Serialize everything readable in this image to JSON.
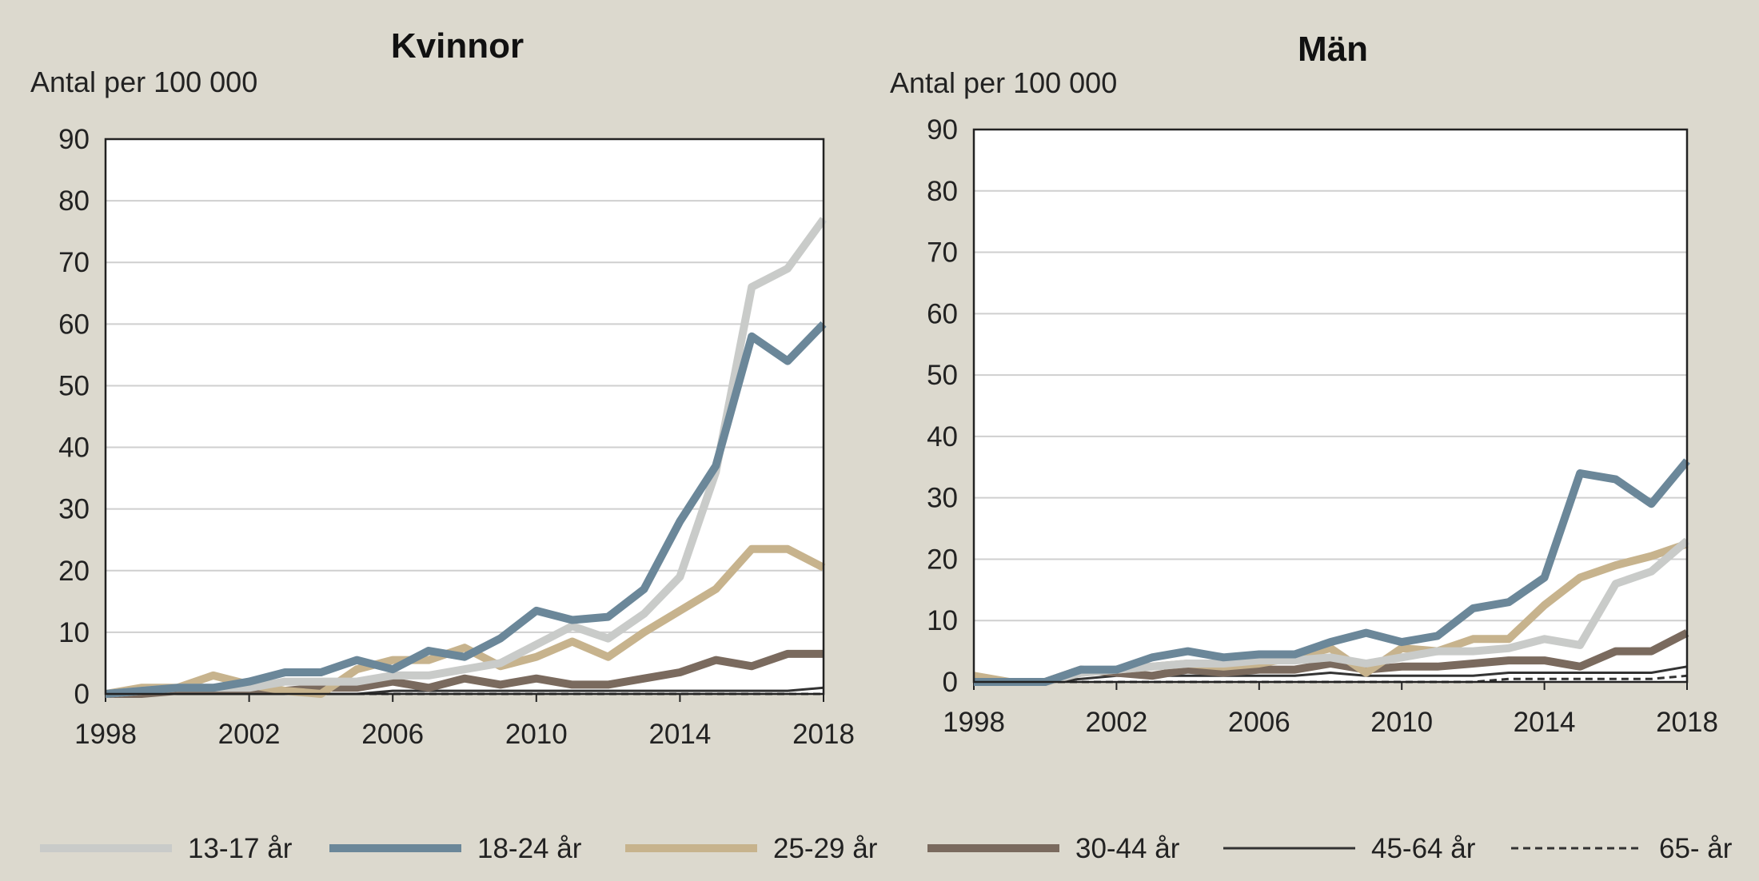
{
  "colors": {
    "background": "#dcd9ce",
    "plot_background": "#ffffff",
    "grid": "#cfcfcf",
    "axis": "#222222"
  },
  "legend": {
    "placement": "bottom",
    "items": [
      {
        "label": "13-17 år",
        "color": "#c9cbc9",
        "style": "thick"
      },
      {
        "label": "18-24 år",
        "color": "#6b8799",
        "style": "thick"
      },
      {
        "label": "25-29 år",
        "color": "#c7b38d",
        "style": "thick"
      },
      {
        "label": "30-44 år",
        "color": "#7a6a5e",
        "style": "thick"
      },
      {
        "label": "45-64 år",
        "color": "#333333",
        "style": "thin"
      },
      {
        "label": "65- år",
        "color": "#333333",
        "style": "dashed"
      }
    ]
  },
  "chart_data": [
    {
      "type": "line",
      "title": "Kvinnor",
      "ylabel": "Antal per 100 000",
      "xlabel": "",
      "ylim": [
        0,
        90
      ],
      "yticks": [
        0,
        10,
        20,
        30,
        40,
        50,
        60,
        70,
        80,
        90
      ],
      "xlim": [
        1998,
        2018
      ],
      "xticks": [
        1998,
        2002,
        2006,
        2010,
        2014,
        2018
      ],
      "grid": true,
      "x": [
        1998,
        1999,
        2000,
        2001,
        2002,
        2003,
        2004,
        2005,
        2006,
        2007,
        2008,
        2009,
        2010,
        2011,
        2012,
        2013,
        2014,
        2015,
        2016,
        2017,
        2018
      ],
      "series": [
        {
          "name": "13-17 år",
          "values": [
            0,
            0.5,
            1,
            1,
            1,
            2,
            2,
            2,
            3,
            3,
            4,
            5,
            8,
            11,
            9,
            13,
            19,
            36,
            66,
            69,
            77
          ]
        },
        {
          "name": "18-24 år",
          "values": [
            0,
            0.5,
            1,
            1,
            2,
            3.5,
            3.5,
            5.5,
            4,
            7,
            6,
            9,
            13.5,
            12,
            12.5,
            17,
            28,
            37,
            58,
            54,
            60
          ]
        },
        {
          "name": "25-29 år",
          "values": [
            0,
            1,
            1,
            3,
            1.5,
            0.5,
            0,
            4,
            5.5,
            5.5,
            7.5,
            4.5,
            6,
            8.5,
            6,
            10,
            13.5,
            17,
            23.5,
            23.5,
            20.5
          ]
        },
        {
          "name": "30-44 år",
          "values": [
            0,
            0,
            0.5,
            0.5,
            0.5,
            0.5,
            1,
            1,
            2,
            1,
            2.5,
            1.5,
            2.5,
            1.5,
            1.5,
            2.5,
            3.5,
            5.5,
            4.5,
            6.5,
            6.5
          ]
        },
        {
          "name": "45-64 år",
          "values": [
            0,
            0,
            0,
            0,
            0,
            0,
            0,
            0,
            0.5,
            0.5,
            0.5,
            0.5,
            0.5,
            0.5,
            0.5,
            0.5,
            0.5,
            0.5,
            0.5,
            0.5,
            1
          ]
        },
        {
          "name": "65- år",
          "values": [
            0,
            0,
            0,
            0,
            0,
            0,
            0,
            0,
            0,
            0,
            0,
            0,
            0,
            0,
            0,
            0,
            0,
            0,
            0,
            0,
            0
          ]
        }
      ]
    },
    {
      "type": "line",
      "title": "Män",
      "ylabel": "Antal per 100 000",
      "xlabel": "",
      "ylim": [
        0,
        90
      ],
      "yticks": [
        0,
        10,
        20,
        30,
        40,
        50,
        60,
        70,
        80,
        90
      ],
      "xlim": [
        1998,
        2018
      ],
      "xticks": [
        1998,
        2002,
        2006,
        2010,
        2014,
        2018
      ],
      "grid": true,
      "x": [
        1998,
        1999,
        2000,
        2001,
        2002,
        2003,
        2004,
        2005,
        2006,
        2007,
        2008,
        2009,
        2010,
        2011,
        2012,
        2013,
        2014,
        2015,
        2016,
        2017,
        2018
      ],
      "series": [
        {
          "name": "13-17 år",
          "values": [
            0,
            0,
            0,
            1.5,
            2,
            2.5,
            3,
            3,
            3.5,
            3.5,
            4,
            3,
            4,
            5,
            5,
            5.5,
            7,
            6,
            16,
            18,
            23
          ]
        },
        {
          "name": "18-24 år",
          "values": [
            0,
            0,
            0,
            2,
            2,
            4,
            5,
            4,
            4.5,
            4.5,
            6.5,
            8,
            6.5,
            7.5,
            12,
            13,
            17,
            34,
            33,
            29,
            36
          ]
        },
        {
          "name": "25-29 år",
          "values": [
            1,
            0,
            0,
            1.5,
            2,
            2.5,
            3,
            2.5,
            3,
            4,
            5.5,
            1.5,
            5.5,
            5,
            7,
            7,
            12.5,
            17,
            19,
            20.5,
            22.5
          ]
        },
        {
          "name": "30-44 år",
          "values": [
            0,
            0,
            0,
            2,
            1.5,
            1,
            2,
            1.5,
            2,
            2,
            3,
            2,
            2.5,
            2.5,
            3,
            3.5,
            3.5,
            2.5,
            5,
            5,
            8
          ]
        },
        {
          "name": "45-64 år",
          "values": [
            0,
            0,
            0,
            0.5,
            1,
            1,
            1,
            1,
            1,
            1,
            1.5,
            1,
            1,
            1,
            1,
            1.5,
            1.5,
            1.5,
            1.5,
            1.5,
            2.5
          ]
        },
        {
          "name": "65- år",
          "values": [
            0,
            0,
            0,
            0,
            0,
            0,
            0,
            0,
            0,
            0,
            0,
            0,
            0,
            0,
            0,
            0.5,
            0.5,
            0.5,
            0.5,
            0.5,
            1
          ]
        }
      ]
    }
  ]
}
